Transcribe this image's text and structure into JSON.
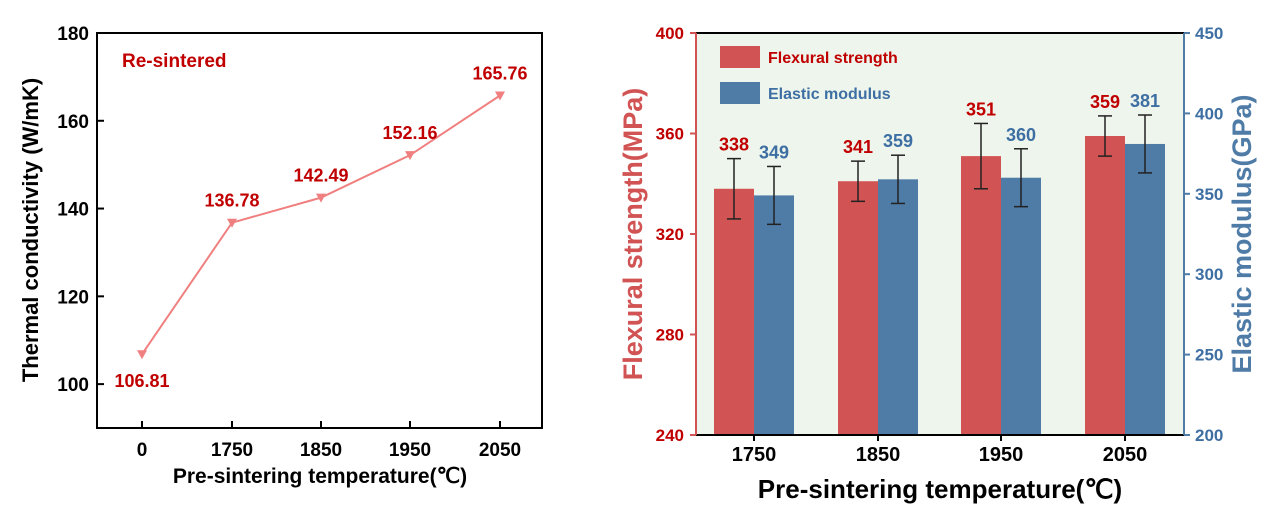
{
  "chart_data": [
    {
      "type": "line",
      "annotation": "Re-sintered",
      "xlabel": "Pre-sintering temperature(℃)",
      "ylabel": "Thermal conductivity (W/mK)",
      "categories": [
        "0",
        "1750",
        "1850",
        "1950",
        "2050"
      ],
      "values": [
        106.81,
        136.78,
        142.49,
        152.16,
        165.76
      ],
      "value_labels": [
        "106.81",
        "136.78",
        "142.49",
        "152.16",
        "165.76"
      ],
      "ylim": [
        90,
        180
      ],
      "yticks": [
        "100",
        "120",
        "140",
        "160",
        "180"
      ],
      "grid": false,
      "colors": {
        "line": "#f08080",
        "marker": "#f08080",
        "labels": "#c00000"
      }
    },
    {
      "type": "bar",
      "xlabel": "Pre-sintering temperature(℃)",
      "ylabel_left": "Flexural strength(MPa)",
      "ylabel_right": "Elastic modulus(GPa)",
      "categories": [
        "1750",
        "1850",
        "1950",
        "2050"
      ],
      "ylim_left": [
        240,
        400
      ],
      "ylim_right": [
        200,
        450
      ],
      "yticks_left": [
        "240",
        "280",
        "320",
        "360",
        "400"
      ],
      "yticks_right": [
        "200",
        "250",
        "300",
        "350",
        "400",
        "450"
      ],
      "legend_position": "top-left",
      "background": "#eef5ec",
      "series": [
        {
          "name": "Flexural strength",
          "axis": "left",
          "values": [
            338,
            341,
            351,
            359
          ],
          "value_labels": [
            "338",
            "341",
            "351",
            "359"
          ],
          "error": [
            12,
            8,
            13,
            8
          ],
          "color": "#d15353",
          "label_color": "#c00000"
        },
        {
          "name": "Elastic modulus",
          "axis": "right",
          "values": [
            349,
            359,
            360,
            381
          ],
          "value_labels": [
            "349",
            "359",
            "360",
            "381"
          ],
          "error": [
            18,
            15,
            18,
            18
          ],
          "color": "#4f7ba7",
          "label_color": "#3e6fa3"
        }
      ]
    }
  ]
}
